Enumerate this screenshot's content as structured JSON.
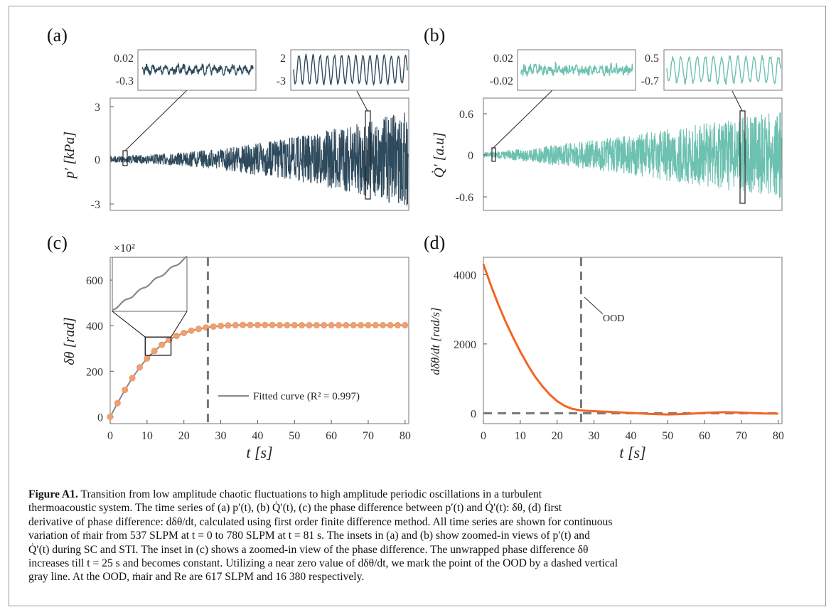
{
  "figure": {
    "panels": {
      "a": {
        "label": "(a)",
        "ylabel": "p′ [kPa]",
        "yticks": [
          "3",
          "0",
          "-3"
        ],
        "inset_left_ticks": [
          "0.02",
          "-0.3"
        ],
        "inset_right_ticks": [
          "2",
          "-3"
        ],
        "color": "#2e4a5c"
      },
      "b": {
        "label": "(b)",
        "ylabel": "Q̇′ [a.u]",
        "yticks": [
          "0.6",
          "0",
          "-0.6"
        ],
        "inset_left_ticks": [
          "0.02",
          "-0.02"
        ],
        "inset_right_ticks": [
          "0.5",
          "-0.7"
        ],
        "color": "#6cc1b0"
      },
      "c": {
        "label": "(c)",
        "ylabel": "δθ [rad]",
        "multiplier": "×10²",
        "xlabel": "t [s]",
        "legend": "Fitted curve (R² = 0.997)"
      },
      "d": {
        "label": "(d)",
        "ylabel": "dδθ/dt [rad/s]",
        "xlabel": "t [s]",
        "annotation": "OOD"
      }
    }
  },
  "chart_data": [
    {
      "type": "line",
      "panel": "c",
      "series": [
        {
          "name": "Fitted curve (R² = 0.997)",
          "x": [
            0,
            2,
            4,
            6,
            8,
            10,
            12,
            14,
            16,
            18,
            20,
            22,
            24,
            26,
            28,
            30,
            32,
            34,
            36,
            38,
            40,
            42,
            44,
            46,
            48,
            50,
            52,
            54,
            56,
            58,
            60,
            62,
            64,
            66,
            68,
            70,
            72,
            74,
            76,
            78,
            80
          ],
          "y": [
            0,
            60,
            118,
            170,
            217,
            256,
            289,
            316,
            338,
            355,
            368,
            378,
            386,
            392,
            396,
            399,
            401,
            402,
            403,
            403,
            403,
            403,
            403,
            402,
            402,
            402,
            402,
            402,
            402,
            402,
            402,
            402,
            402,
            402,
            402,
            402,
            402,
            402,
            402,
            402,
            402
          ]
        }
      ],
      "xlim": [
        0,
        81
      ],
      "ylim": [
        -30,
        700
      ],
      "xticks": [
        0,
        10,
        20,
        30,
        40,
        50,
        60,
        70,
        80
      ],
      "yticks": [
        0,
        200,
        400,
        600
      ],
      "vline": 26.5
    },
    {
      "type": "line",
      "panel": "d",
      "series": [
        {
          "x": [
            0,
            2,
            4,
            6,
            8,
            10,
            12,
            14,
            16,
            18,
            20,
            22,
            24,
            26,
            28,
            30,
            32,
            34,
            36,
            38,
            40,
            45,
            50,
            55,
            60,
            65,
            70,
            75,
            80
          ],
          "y": [
            4300,
            3700,
            3150,
            2650,
            2200,
            1780,
            1400,
            1060,
            780,
            540,
            350,
            215,
            130,
            90,
            70,
            60,
            50,
            40,
            30,
            20,
            10,
            -20,
            -35,
            -20,
            10,
            30,
            20,
            -5,
            -10
          ]
        }
      ],
      "xlim": [
        0,
        81
      ],
      "ylim": [
        -300,
        4500
      ],
      "xticks": [
        0,
        10,
        20,
        30,
        40,
        50,
        60,
        70,
        80
      ],
      "yticks": [
        0,
        2000,
        4000
      ],
      "vline": 26.5,
      "hline": 0
    }
  ],
  "caption": {
    "title": "Figure A1.",
    "lines": [
      "Transition from low amplitude chaotic fluctuations to high amplitude periodic oscillations in a turbulent",
      "thermoacoustic system. The time series of (a) p′(t), (b) Q̇′(t), (c) the phase difference between p′(t) and Q̇′(t): δθ, (d) first",
      "derivative of phase difference: dδθ/dt, calculated using first order finite difference method. All time series are shown for continuous",
      "variation of ṁair from 537 SLPM at t = 0 to 780 SLPM at t = 81 s. The insets in (a) and (b) show zoomed-in views of p′(t) and",
      "Q̇′(t) during SC and STI. The inset in (c) shows a zoomed-in view of the phase difference. The unwrapped phase difference δθ",
      "increases till t = 25 s and becomes constant. Utilizing a near zero value of dδθ/dt, we mark the point of the OOD by a dashed vertical",
      "gray line. At the OOD, ṁair and Re are 617 SLPM and 16 380 respectively."
    ]
  }
}
